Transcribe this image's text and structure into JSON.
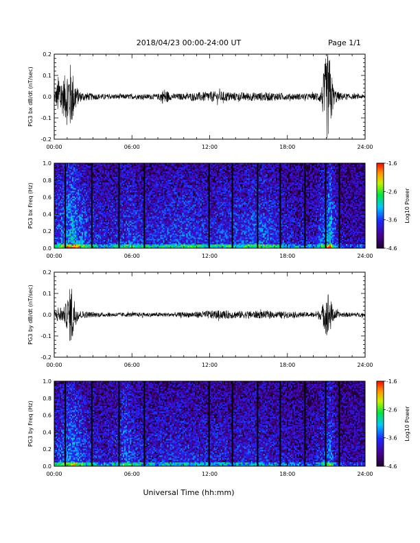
{
  "header": {
    "date_range": "2018/04/23  00:00-24:00 UT",
    "page": "Page 1/1"
  },
  "footer": {
    "xlabel": "Universal Time (hh:mm)"
  },
  "colors": {
    "spectrogram_background": "#220033",
    "data_gap": "#000000",
    "trace": "#000000"
  },
  "chart_data": [
    {
      "id": "bx-dbdt",
      "type": "line",
      "ylabel": "PG3 bx dB/dt (nT/sec)",
      "xlim": [
        0,
        24
      ],
      "ylim": [
        -0.2,
        0.2
      ],
      "x_tick_labels": [
        "00:00",
        "06:00",
        "12:00",
        "18:00",
        "24:00"
      ],
      "y_tick_labels": [
        "-0.2",
        "-0.1",
        "0.0",
        "0.1",
        "0.2"
      ],
      "series": [
        {
          "x": [
            0,
            0.2,
            0.4,
            0.6,
            0.8,
            1.0,
            1.2,
            1.4,
            1.6,
            1.8,
            2.0,
            2.5,
            3.0,
            4.0,
            5.0,
            6.0,
            7.0,
            8.0,
            8.5,
            9.0,
            10.0,
            11.0,
            12.0,
            13.0,
            14.0,
            15.0,
            16.0,
            17.0,
            18.0,
            19.0,
            20.0,
            20.6,
            21.0,
            21.2,
            21.4,
            21.6,
            22.0,
            23.0,
            24.0
          ],
          "amplitude": [
            0.02,
            0.06,
            0.13,
            0.08,
            0.1,
            0.14,
            0.17,
            0.13,
            0.08,
            0.04,
            0.025,
            0.02,
            0.015,
            0.012,
            0.012,
            0.012,
            0.012,
            0.013,
            0.04,
            0.015,
            0.015,
            0.02,
            0.025,
            0.025,
            0.02,
            0.02,
            0.02,
            0.02,
            0.015,
            0.015,
            0.015,
            0.03,
            0.2,
            0.22,
            0.12,
            0.04,
            0.02,
            0.012,
            0.01
          ]
        }
      ]
    },
    {
      "id": "bx-spectrogram",
      "type": "heatmap",
      "ylabel": "PG3 bx Freq (Hz)",
      "xlim": [
        0,
        24
      ],
      "ylim": [
        0,
        1.0
      ],
      "x_tick_labels": [
        "00:00",
        "06:00",
        "12:00",
        "18:00",
        "24:00"
      ],
      "y_tick_labels": [
        "0.0",
        "0.2",
        "0.4",
        "0.6",
        "0.8",
        "1.0"
      ],
      "colorbar": {
        "label": "Log10 Power",
        "range": [
          -4.6,
          -1.6
        ],
        "tick_labels": [
          "-1.6",
          "-2.6",
          "-3.6",
          "-4.6"
        ]
      },
      "data_gaps": [
        [
          0.8,
          0.9
        ],
        [
          2.85,
          2.95
        ],
        [
          4.95,
          5.05
        ],
        [
          6.9,
          7.0
        ],
        [
          11.9,
          12.0
        ],
        [
          13.7,
          13.8
        ],
        [
          15.65,
          15.75
        ],
        [
          17.4,
          17.5
        ],
        [
          19.3,
          19.4
        ],
        [
          20.9,
          21.0
        ],
        [
          21.95,
          22.05
        ]
      ],
      "activity_profile": {
        "x": [
          0,
          1,
          1.5,
          2,
          3,
          4,
          5,
          6,
          7,
          8,
          9,
          10,
          11,
          12,
          13,
          14,
          15,
          16,
          17,
          18,
          19,
          20,
          21,
          21.3,
          21.6,
          22,
          23,
          24
        ],
        "level": [
          0.55,
          0.8,
          0.9,
          0.7,
          0.5,
          0.45,
          0.5,
          0.6,
          0.5,
          0.5,
          0.55,
          0.6,
          0.55,
          0.5,
          0.55,
          0.55,
          0.6,
          0.65,
          0.55,
          0.45,
          0.4,
          0.4,
          0.7,
          0.95,
          0.6,
          0.35,
          0.3,
          0.3
        ]
      }
    },
    {
      "id": "by-dbdt",
      "type": "line",
      "ylabel": "PG3 by dB/dt (nT/sec)",
      "xlim": [
        0,
        24
      ],
      "ylim": [
        -0.2,
        0.2
      ],
      "x_tick_labels": [
        "00:00",
        "06:00",
        "12:00",
        "18:00",
        "24:00"
      ],
      "y_tick_labels": [
        "-0.2",
        "-0.1",
        "0.0",
        "0.1",
        "0.2"
      ],
      "series": [
        {
          "x": [
            0,
            0.2,
            0.4,
            0.6,
            0.8,
            1.0,
            1.2,
            1.4,
            1.6,
            1.8,
            2.0,
            2.5,
            3.0,
            4.0,
            5.0,
            6.0,
            7.0,
            8.0,
            9.0,
            10.0,
            11.0,
            12.0,
            13.0,
            14.0,
            15.0,
            16.0,
            17.0,
            18.0,
            19.0,
            20.0,
            20.6,
            21.0,
            21.2,
            21.4,
            21.6,
            22.0,
            23.0,
            24.0
          ],
          "amplitude": [
            0.01,
            0.03,
            0.05,
            0.03,
            0.04,
            0.07,
            0.13,
            0.15,
            0.06,
            0.03,
            0.02,
            0.015,
            0.012,
            0.01,
            0.01,
            0.01,
            0.01,
            0.01,
            0.01,
            0.012,
            0.015,
            0.02,
            0.02,
            0.018,
            0.018,
            0.018,
            0.015,
            0.015,
            0.012,
            0.012,
            0.025,
            0.1,
            0.12,
            0.06,
            0.03,
            0.012,
            0.01,
            0.01
          ]
        }
      ]
    },
    {
      "id": "by-spectrogram",
      "type": "heatmap",
      "ylabel": "PG3 by Freq (Hz)",
      "xlim": [
        0,
        24
      ],
      "ylim": [
        0,
        1.0
      ],
      "x_tick_labels": [
        "00:00",
        "06:00",
        "12:00",
        "18:00",
        "24:00"
      ],
      "y_tick_labels": [
        "0.0",
        "0.2",
        "0.4",
        "0.6",
        "0.8",
        "1.0"
      ],
      "colorbar": {
        "label": "Log10 Power",
        "range": [
          -4.6,
          -1.6
        ],
        "tick_labels": [
          "-1.6",
          "-2.6",
          "-3.6",
          "-4.6"
        ]
      },
      "data_gaps": [
        [
          0.8,
          0.9
        ],
        [
          2.85,
          2.95
        ],
        [
          4.95,
          5.05
        ],
        [
          6.9,
          7.0
        ],
        [
          11.9,
          12.0
        ],
        [
          13.7,
          13.8
        ],
        [
          15.65,
          15.75
        ],
        [
          17.4,
          17.5
        ],
        [
          19.3,
          19.4
        ],
        [
          20.9,
          21.0
        ],
        [
          21.95,
          22.05
        ]
      ],
      "activity_profile": {
        "x": [
          0,
          1,
          1.5,
          2,
          3,
          4,
          5,
          5.5,
          6,
          7,
          8,
          9,
          10,
          11,
          12,
          13,
          14,
          15,
          16,
          17,
          18,
          19,
          20,
          21,
          21.3,
          21.6,
          22,
          23,
          24
        ],
        "level": [
          0.5,
          0.7,
          0.8,
          0.6,
          0.45,
          0.4,
          0.5,
          0.7,
          0.55,
          0.45,
          0.45,
          0.5,
          0.5,
          0.45,
          0.45,
          0.45,
          0.45,
          0.45,
          0.45,
          0.4,
          0.4,
          0.35,
          0.35,
          0.55,
          0.75,
          0.5,
          0.3,
          0.28,
          0.28
        ]
      }
    }
  ]
}
